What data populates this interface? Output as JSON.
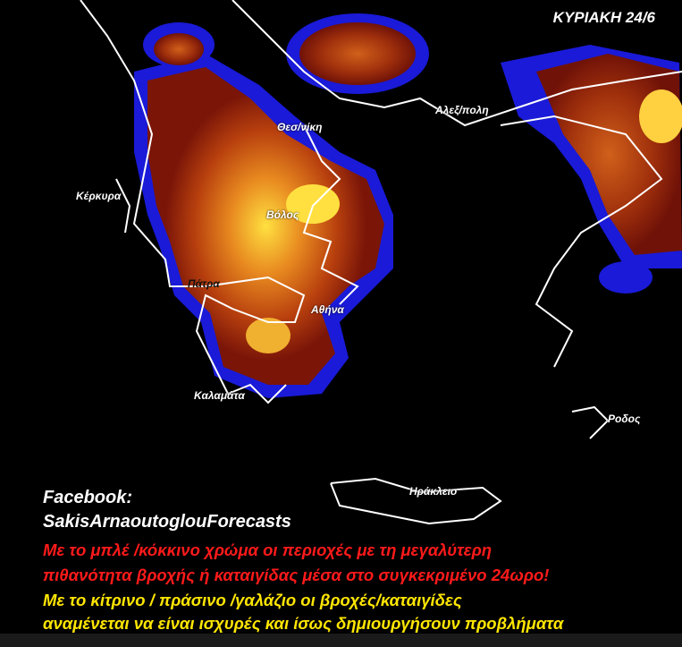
{
  "date_label": "ΚΥΡΙΑΚΗ 24/6",
  "cities": {
    "kerkyra": "Κέρκυρα",
    "thessaloniki": "Θεσ/νίκη",
    "alexandroupoli": "Αλεξ/πολη",
    "volos": "Βόλος",
    "patra": "Πάτρα",
    "athina": "Αθήνα",
    "kalamata": "Καλαμάτα",
    "rodos": "Ροδος",
    "irakleio": "Ηράκλειο"
  },
  "credit": {
    "line1": "Facebook:",
    "line2": "SakisArnaoutoglouForecasts"
  },
  "legend": {
    "red_line1": "Με το μπλέ /κόκκινο χρώμα οι περιοχές με τη μεγαλύτερη",
    "red_line2": "πιθανότητα βροχής ή καταιγίδας μέσα στο συγκεκριμένο 24ωρο!",
    "yellow_line1": "Με το κίτρινο / πράσινο /γαλάζιο οι βροχές/καταιγίδες",
    "yellow_line2": "αναμένεται να είναι ισχυρές και ίσως δημιουργήσουν προβλήματα"
  },
  "colors": {
    "low": "#1a1ad8",
    "mid": "#8b1a0a",
    "high": "#d86a10",
    "peak": "#ffe040",
    "coast": "#ffffff",
    "red_text": "#ff1a1a",
    "yellow_text": "#ffe600"
  }
}
